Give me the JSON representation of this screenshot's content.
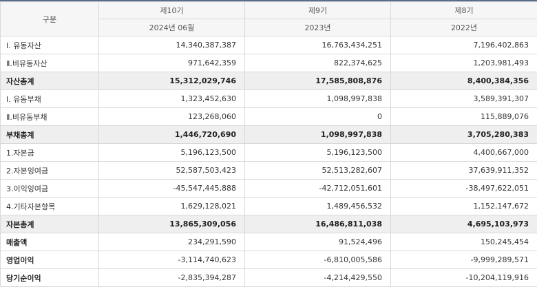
{
  "header": {
    "category_label": "구분",
    "periods": [
      {
        "label": "제10기",
        "date": "2024년 06월"
      },
      {
        "label": "제9기",
        "date": "2023년"
      },
      {
        "label": "제8기",
        "date": "2022년"
      }
    ]
  },
  "rows": [
    {
      "label": "Ⅰ. 유동자산",
      "values": [
        "14,340,387,387",
        "16,763,434,251",
        "7,196,402,863"
      ],
      "style": "normal"
    },
    {
      "label": "Ⅱ.비유동자산",
      "values": [
        "971,642,359",
        "822,374,625",
        "1,203,981,493"
      ],
      "style": "normal"
    },
    {
      "label": "자산총계",
      "values": [
        "15,312,029,746",
        "17,585,808,876",
        "8,400,384,356"
      ],
      "style": "total"
    },
    {
      "label": "Ⅰ. 유동부채",
      "values": [
        "1,323,452,630",
        "1,098,997,838",
        "3,589,391,307"
      ],
      "style": "normal"
    },
    {
      "label": "Ⅱ.비유동부채",
      "values": [
        "123,268,060",
        "0",
        "115,889,076"
      ],
      "style": "normal"
    },
    {
      "label": "부채총계",
      "values": [
        "1,446,720,690",
        "1,098,997,838",
        "3,705,280,383"
      ],
      "style": "total"
    },
    {
      "label": "1.자본금",
      "values": [
        "5,196,123,500",
        "5,196,123,500",
        "4,400,667,000"
      ],
      "style": "normal"
    },
    {
      "label": "2.자본잉여금",
      "values": [
        "52,587,503,423",
        "52,513,282,607",
        "37,639,911,352"
      ],
      "style": "normal"
    },
    {
      "label": "3.이익잉여금",
      "values": [
        "-45,547,445,888",
        "-42,712,051,601",
        "-38,497,622,051"
      ],
      "style": "normal"
    },
    {
      "label": "4.기타자본항목",
      "values": [
        "1,629,128,021",
        "1,489,456,532",
        "1,152,147,672"
      ],
      "style": "normal"
    },
    {
      "label": "자본총계",
      "values": [
        "13,865,309,056",
        "16,486,811,038",
        "4,695,103,973"
      ],
      "style": "total"
    },
    {
      "label": "매출액",
      "values": [
        "234,291,590",
        "91,524,496",
        "150,245,454"
      ],
      "style": "bold"
    },
    {
      "label": "영업이익",
      "values": [
        "-3,114,740,623",
        "-6,810,005,586",
        "-9,999,289,571"
      ],
      "style": "bold"
    },
    {
      "label": "당기순이익",
      "values": [
        "-2,835,394,287",
        "-4,214,429,550",
        "-10,204,119,916"
      ],
      "style": "bold"
    }
  ]
}
